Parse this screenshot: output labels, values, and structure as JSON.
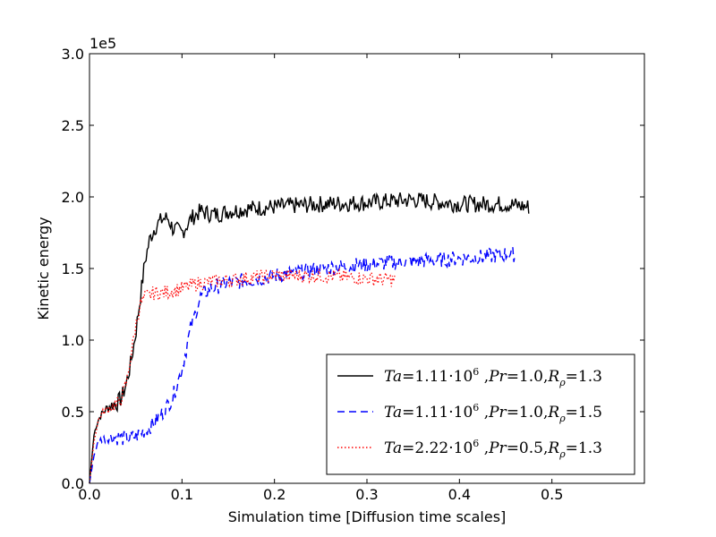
{
  "chart_data": {
    "type": "line",
    "title": "",
    "xlabel": "Simulation time [Diffusion time scales]",
    "ylabel": "Kinetic energy",
    "scale_note": "1e5",
    "xlim": [
      0.0,
      0.6
    ],
    "ylim": [
      0.0,
      3.0
    ],
    "x_ticks": [
      0.0,
      0.1,
      0.2,
      0.3,
      0.4,
      0.5
    ],
    "x_tick_labels": [
      "0.0",
      "0.1",
      "0.2",
      "0.3",
      "0.4",
      "0.5"
    ],
    "y_ticks": [
      0.0,
      0.5,
      1.0,
      1.5,
      2.0,
      2.5,
      3.0
    ],
    "y_tick_labels": [
      "0.0",
      "0.5",
      "1.0",
      "1.5",
      "2.0",
      "2.5",
      "3.0"
    ],
    "grid": false,
    "legend_position": "lower-right",
    "series": [
      {
        "name": "Ta=1.11·10^6, Pr=1.0, R_ρ=1.3",
        "legend": {
          "ta": "1.11",
          "exp": "6",
          "pr": "1.0",
          "r": "1.3"
        },
        "color": "#000000",
        "style": "solid",
        "points": [
          [
            0.0,
            0.0
          ],
          [
            0.005,
            0.35
          ],
          [
            0.01,
            0.45
          ],
          [
            0.015,
            0.5
          ],
          [
            0.02,
            0.53
          ],
          [
            0.025,
            0.55
          ],
          [
            0.03,
            0.56
          ],
          [
            0.035,
            0.6
          ],
          [
            0.04,
            0.7
          ],
          [
            0.045,
            0.85
          ],
          [
            0.05,
            1.05
          ],
          [
            0.055,
            1.3
          ],
          [
            0.06,
            1.55
          ],
          [
            0.065,
            1.7
          ],
          [
            0.07,
            1.78
          ],
          [
            0.075,
            1.82
          ],
          [
            0.08,
            1.85
          ],
          [
            0.085,
            1.85
          ],
          [
            0.09,
            1.78
          ],
          [
            0.1,
            1.75
          ],
          [
            0.11,
            1.85
          ],
          [
            0.12,
            1.9
          ],
          [
            0.13,
            1.88
          ],
          [
            0.14,
            1.88
          ],
          [
            0.15,
            1.9
          ],
          [
            0.175,
            1.92
          ],
          [
            0.2,
            1.93
          ],
          [
            0.25,
            1.95
          ],
          [
            0.3,
            1.96
          ],
          [
            0.35,
            1.98
          ],
          [
            0.4,
            1.95
          ],
          [
            0.45,
            1.95
          ],
          [
            0.475,
            1.93
          ]
        ]
      },
      {
        "name": "Ta=1.11·10^6, Pr=1.0, R_ρ=1.5",
        "legend": {
          "ta": "1.11",
          "exp": "6",
          "pr": "1.0",
          "r": "1.5"
        },
        "color": "#0000ff",
        "style": "dashed",
        "points": [
          [
            0.0,
            0.0
          ],
          [
            0.005,
            0.2
          ],
          [
            0.01,
            0.3
          ],
          [
            0.02,
            0.32
          ],
          [
            0.03,
            0.32
          ],
          [
            0.04,
            0.31
          ],
          [
            0.05,
            0.33
          ],
          [
            0.06,
            0.37
          ],
          [
            0.07,
            0.42
          ],
          [
            0.08,
            0.5
          ],
          [
            0.09,
            0.6
          ],
          [
            0.095,
            0.7
          ],
          [
            0.1,
            0.8
          ],
          [
            0.105,
            0.95
          ],
          [
            0.11,
            1.1
          ],
          [
            0.115,
            1.2
          ],
          [
            0.12,
            1.3
          ],
          [
            0.13,
            1.36
          ],
          [
            0.14,
            1.38
          ],
          [
            0.15,
            1.4
          ],
          [
            0.175,
            1.42
          ],
          [
            0.2,
            1.45
          ],
          [
            0.25,
            1.5
          ],
          [
            0.3,
            1.53
          ],
          [
            0.35,
            1.55
          ],
          [
            0.4,
            1.57
          ],
          [
            0.425,
            1.58
          ],
          [
            0.45,
            1.6
          ],
          [
            0.46,
            1.6
          ]
        ]
      },
      {
        "name": "Ta=2.22·10^6, Pr=0.5, R_ρ=1.3",
        "legend": {
          "ta": "2.22",
          "exp": "6",
          "pr": "0.5",
          "r": "1.3"
        },
        "color": "#ff0000",
        "style": "dotted",
        "points": [
          [
            0.0,
            0.0
          ],
          [
            0.005,
            0.3
          ],
          [
            0.01,
            0.45
          ],
          [
            0.015,
            0.5
          ],
          [
            0.02,
            0.52
          ],
          [
            0.025,
            0.54
          ],
          [
            0.03,
            0.55
          ],
          [
            0.035,
            0.6
          ],
          [
            0.04,
            0.7
          ],
          [
            0.045,
            0.9
          ],
          [
            0.05,
            1.1
          ],
          [
            0.055,
            1.25
          ],
          [
            0.06,
            1.3
          ],
          [
            0.07,
            1.33
          ],
          [
            0.08,
            1.33
          ],
          [
            0.1,
            1.36
          ],
          [
            0.12,
            1.4
          ],
          [
            0.15,
            1.42
          ],
          [
            0.2,
            1.45
          ],
          [
            0.25,
            1.45
          ],
          [
            0.3,
            1.43
          ],
          [
            0.33,
            1.42
          ]
        ]
      }
    ]
  }
}
